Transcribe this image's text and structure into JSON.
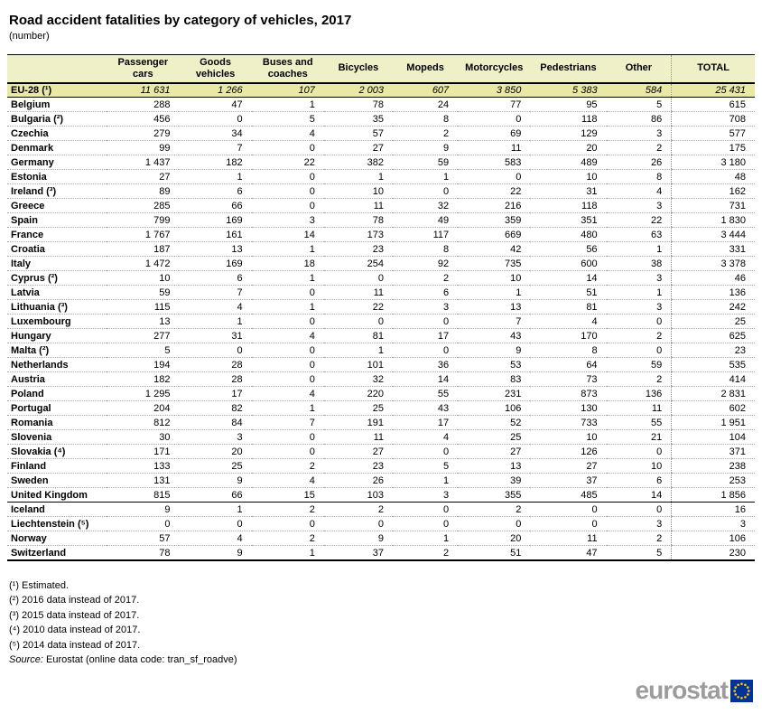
{
  "page": {
    "title": "Road accident fatalities by category of vehicles, 2017",
    "subtitle": "(number)"
  },
  "chart_data": {
    "type": "table",
    "columns": [
      "",
      "Passenger cars",
      "Goods vehicles",
      "Buses and coaches",
      "Bicycles",
      "Mopeds",
      "Motorcycles",
      "Pedestrians",
      "Other",
      "TOTAL"
    ],
    "eu_row": [
      "EU-28 (¹)",
      "11 631",
      "1 266",
      "107",
      "2 003",
      "607",
      "3 850",
      "5 383",
      "584",
      "25 431"
    ],
    "rows": [
      [
        "Belgium",
        "288",
        "47",
        "1",
        "78",
        "24",
        "77",
        "95",
        "5",
        "615"
      ],
      [
        "Bulgaria (²)",
        "456",
        "0",
        "5",
        "35",
        "8",
        "0",
        "118",
        "86",
        "708"
      ],
      [
        "Czechia",
        "279",
        "34",
        "4",
        "57",
        "2",
        "69",
        "129",
        "3",
        "577"
      ],
      [
        "Denmark",
        "99",
        "7",
        "0",
        "27",
        "9",
        "11",
        "20",
        "2",
        "175"
      ],
      [
        "Germany",
        "1 437",
        "182",
        "22",
        "382",
        "59",
        "583",
        "489",
        "26",
        "3 180"
      ],
      [
        "Estonia",
        "27",
        "1",
        "0",
        "1",
        "1",
        "0",
        "10",
        "8",
        "48"
      ],
      [
        "Ireland (³)",
        "89",
        "6",
        "0",
        "10",
        "0",
        "22",
        "31",
        "4",
        "162"
      ],
      [
        "Greece",
        "285",
        "66",
        "0",
        "11",
        "32",
        "216",
        "118",
        "3",
        "731"
      ],
      [
        "Spain",
        "799",
        "169",
        "3",
        "78",
        "49",
        "359",
        "351",
        "22",
        "1 830"
      ],
      [
        "France",
        "1 767",
        "161",
        "14",
        "173",
        "117",
        "669",
        "480",
        "63",
        "3 444"
      ],
      [
        "Croatia",
        "187",
        "13",
        "1",
        "23",
        "8",
        "42",
        "56",
        "1",
        "331"
      ],
      [
        "Italy",
        "1 472",
        "169",
        "18",
        "254",
        "92",
        "735",
        "600",
        "38",
        "3 378"
      ],
      [
        "Cyprus (²)",
        "10",
        "6",
        "1",
        "0",
        "2",
        "10",
        "14",
        "3",
        "46"
      ],
      [
        "Latvia",
        "59",
        "7",
        "0",
        "11",
        "6",
        "1",
        "51",
        "1",
        "136"
      ],
      [
        "Lithuania (³)",
        "115",
        "4",
        "1",
        "22",
        "3",
        "13",
        "81",
        "3",
        "242"
      ],
      [
        "Luxembourg",
        "13",
        "1",
        "0",
        "0",
        "0",
        "7",
        "4",
        "0",
        "25"
      ],
      [
        "Hungary",
        "277",
        "31",
        "4",
        "81",
        "17",
        "43",
        "170",
        "2",
        "625"
      ],
      [
        "Malta (²)",
        "5",
        "0",
        "0",
        "1",
        "0",
        "9",
        "8",
        "0",
        "23"
      ],
      [
        "Netherlands",
        "194",
        "28",
        "0",
        "101",
        "36",
        "53",
        "64",
        "59",
        "535"
      ],
      [
        "Austria",
        "182",
        "28",
        "0",
        "32",
        "14",
        "83",
        "73",
        "2",
        "414"
      ],
      [
        "Poland",
        "1 295",
        "17",
        "4",
        "220",
        "55",
        "231",
        "873",
        "136",
        "2 831"
      ],
      [
        "Portugal",
        "204",
        "82",
        "1",
        "25",
        "43",
        "106",
        "130",
        "11",
        "602"
      ],
      [
        "Romania",
        "812",
        "84",
        "7",
        "191",
        "17",
        "52",
        "733",
        "55",
        "1 951"
      ],
      [
        "Slovenia",
        "30",
        "3",
        "0",
        "11",
        "4",
        "25",
        "10",
        "21",
        "104"
      ],
      [
        "Slovakia (⁴)",
        "171",
        "20",
        "0",
        "27",
        "0",
        "27",
        "126",
        "0",
        "371"
      ],
      [
        "Finland",
        "133",
        "25",
        "2",
        "23",
        "5",
        "13",
        "27",
        "10",
        "238"
      ],
      [
        "Sweden",
        "131",
        "9",
        "4",
        "26",
        "1",
        "39",
        "37",
        "6",
        "253"
      ],
      [
        "United Kingdom",
        "815",
        "66",
        "15",
        "103",
        "3",
        "355",
        "485",
        "14",
        "1 856"
      ],
      [
        "Iceland",
        "9",
        "1",
        "2",
        "2",
        "0",
        "2",
        "0",
        "0",
        "16"
      ],
      [
        "Liechtenstein (⁵)",
        "0",
        "0",
        "0",
        "0",
        "0",
        "0",
        "0",
        "3",
        "3"
      ],
      [
        "Norway",
        "57",
        "4",
        "2",
        "9",
        "1",
        "20",
        "11",
        "2",
        "106"
      ],
      [
        "Switzerland",
        "78",
        "9",
        "1",
        "37",
        "2",
        "51",
        "47",
        "5",
        "230"
      ]
    ],
    "layout": {
      "grid": "dotted row separators, dotted divider before TOTAL column",
      "solid_separator_after_row_index": 27
    }
  },
  "footnotes": [
    "(¹) Estimated.",
    "(²) 2016 data instead of 2017.",
    "(³) 2015 data instead of 2017.",
    "(⁴) 2010 data instead of 2017.",
    "(⁵) 2014 data instead of 2017."
  ],
  "source": {
    "label": "Source:",
    "text": "Eurostat (online data code: tran_sf_roadve)"
  },
  "logo": {
    "text": "eurostat"
  },
  "colors": {
    "header_bg": "#EFF0C8",
    "eu_row_bg": "#E9E9A5",
    "logo_gray": "#9C9C9C",
    "flag_blue": "#003399",
    "star_yellow": "#FFCC00"
  }
}
